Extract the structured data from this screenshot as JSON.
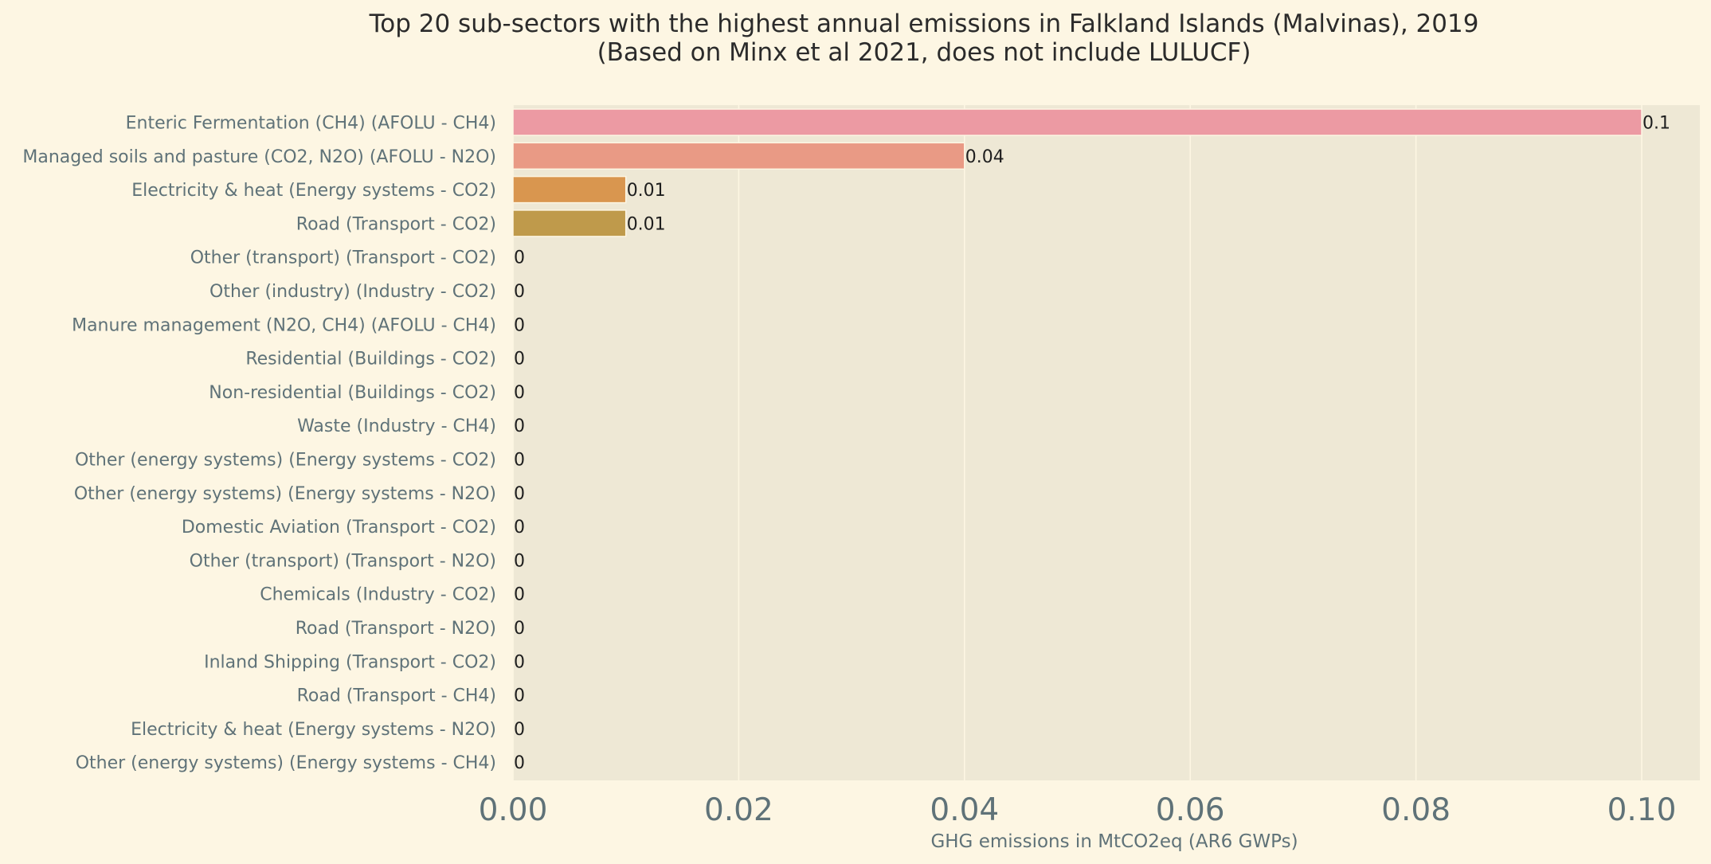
{
  "chart_data": {
    "type": "bar",
    "orientation": "horizontal",
    "title": "Top 20 sub-sectors with the highest annual emissions in Falkland Islands (Malvinas), 2019",
    "subtitle": "(Based on Minx et al 2021, does not include LULUCF)",
    "xlabel": "GHG emissions in MtCO2eq (AR6 GWPs)",
    "ylabel": "",
    "xlim": [
      0,
      0.105
    ],
    "xticks": [
      0.0,
      0.02,
      0.04,
      0.06,
      0.08,
      0.1
    ],
    "xtick_labels": [
      "0.00",
      "0.02",
      "0.04",
      "0.06",
      "0.08",
      "0.10"
    ],
    "grid": true,
    "categories": [
      "Enteric Fermentation (CH4) (AFOLU - CH4)",
      "Managed soils and pasture (CO2, N2O) (AFOLU - N2O)",
      "Electricity & heat (Energy systems - CO2)",
      "Road (Transport - CO2)",
      "Other (transport) (Transport - CO2)",
      "Other (industry) (Industry - CO2)",
      "Manure management (N2O, CH4) (AFOLU - CH4)",
      "Residential (Buildings - CO2)",
      "Non-residential (Buildings - CO2)",
      "Waste (Industry - CH4)",
      "Other (energy systems) (Energy systems - CO2)",
      "Other (energy systems) (Energy systems - N2O)",
      "Domestic Aviation (Transport - CO2)",
      "Other (transport) (Transport - N2O)",
      "Chemicals (Industry - CO2)",
      "Road (Transport - N2O)",
      "Inland Shipping (Transport - CO2)",
      "Road (Transport - CH4)",
      "Electricity & heat (Energy systems - N2O)",
      "Other (energy systems) (Energy systems - CH4)"
    ],
    "values": [
      0.1,
      0.04,
      0.01,
      0.01,
      0,
      0,
      0,
      0,
      0,
      0,
      0,
      0,
      0,
      0,
      0,
      0,
      0,
      0,
      0,
      0
    ],
    "data_labels": [
      "0.1",
      "0.04",
      "0.01",
      "0.01",
      "0",
      "0",
      "0",
      "0",
      "0",
      "0",
      "0",
      "0",
      "0",
      "0",
      "0",
      "0",
      "0",
      "0",
      "0",
      "0"
    ],
    "colors": [
      "#ec9aa3",
      "#e99a85",
      "#d9964f",
      "#bf9a4b",
      "#a8a04a",
      "#92a54a",
      "#78aa5a",
      "#5fae7a",
      "#55ad95",
      "#53aca5",
      "#52aab3",
      "#55a8c2",
      "#5fa3d2",
      "#7e9ce0",
      "#9b94e6",
      "#b38ee6",
      "#c98bdf",
      "#da8bd0",
      "#e48fbf",
      "#ea94b0"
    ],
    "background": "#fdf6e3",
    "plot_background": "#eee8d5",
    "grid_color": "#fdf6e3"
  }
}
